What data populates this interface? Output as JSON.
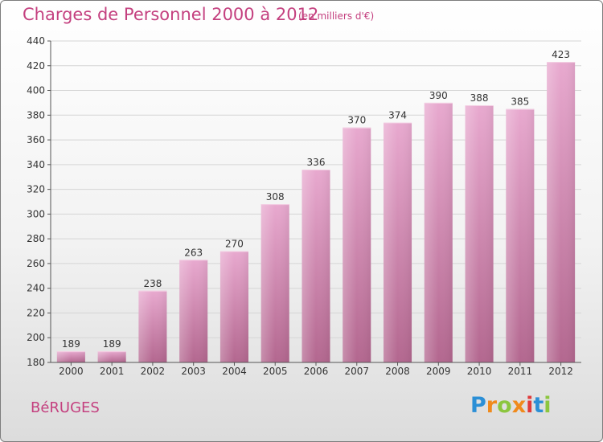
{
  "header": {
    "title": "Charges de Personnel 2000 à 2012",
    "subtitle": "(en milliers d'€)"
  },
  "footer": {
    "commune": "BéRUGES",
    "logo": "Proxiti"
  },
  "colors": {
    "title": "#c4407f",
    "bar_top": "#e8a9cf",
    "bar_bottom": "#b3678f",
    "grid": "#d5d5d5",
    "axis": "#555555",
    "text": "#333333"
  },
  "chart_data": {
    "type": "bar",
    "title": "Charges de Personnel 2000 à 2012",
    "subtitle": "(en milliers d'€)",
    "xlabel": "",
    "ylabel": "",
    "categories": [
      "2000",
      "2001",
      "2002",
      "2003",
      "2004",
      "2005",
      "2006",
      "2007",
      "2008",
      "2009",
      "2010",
      "2011",
      "2012"
    ],
    "values": [
      189,
      189,
      238,
      263,
      270,
      308,
      336,
      370,
      374,
      390,
      388,
      385,
      423
    ],
    "ylim": [
      180,
      440
    ],
    "yticks": [
      180,
      200,
      220,
      240,
      260,
      280,
      300,
      320,
      340,
      360,
      380,
      400,
      420,
      440
    ],
    "grid": true,
    "data_labels": true
  }
}
